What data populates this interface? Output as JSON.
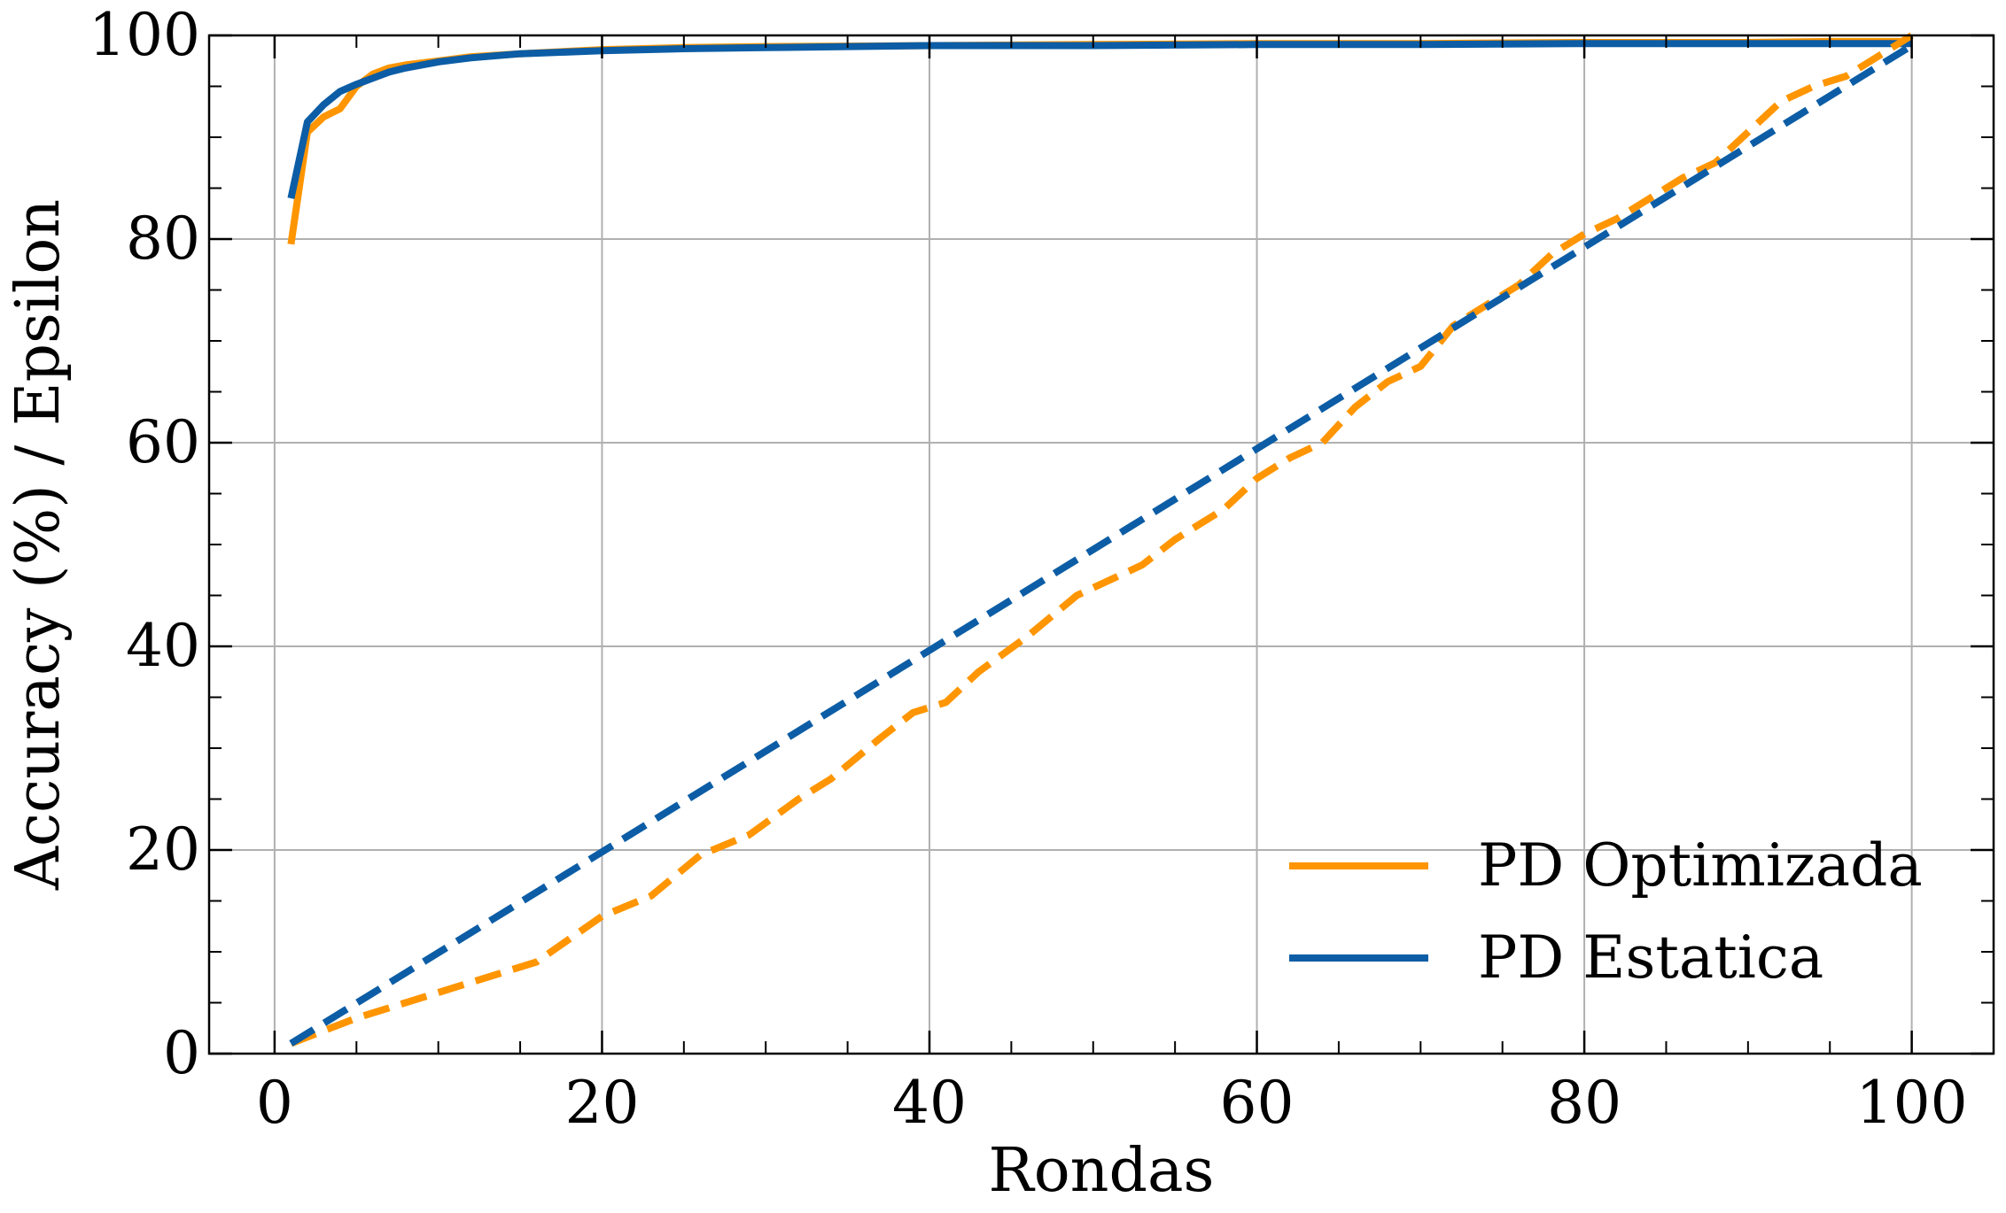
{
  "chart_data": {
    "type": "line",
    "title": "",
    "xlabel": "Rondas",
    "ylabel": "Accuracy (%) / Epsilon",
    "xlim": [
      -4,
      105
    ],
    "ylim": [
      0,
      100
    ],
    "xticks": [
      0,
      20,
      40,
      60,
      80,
      100
    ],
    "yticks": [
      0,
      20,
      40,
      60,
      80,
      100
    ],
    "xtick_labels": [
      "0",
      "20",
      "40",
      "60",
      "80",
      "100"
    ],
    "ytick_labels": [
      "0",
      "20",
      "40",
      "60",
      "80",
      "100"
    ],
    "grid": true,
    "legend_position": "bottom-right",
    "legend": [
      "PD Optimizada",
      "PD Estatica"
    ],
    "colors": {
      "PD Optimizada": "#ff9500",
      "PD Estatica": "#0c5da5"
    },
    "series": [
      {
        "name": "PD Optimizada",
        "metric": "accuracy",
        "style": "solid",
        "color": "#ff9500",
        "x": [
          1,
          2,
          3,
          4,
          5,
          6,
          7,
          8,
          10,
          12,
          15,
          20,
          25,
          30,
          40,
          50,
          60,
          70,
          80,
          90,
          95,
          100
        ],
        "y": [
          79.5,
          90.5,
          92.0,
          92.8,
          95.0,
          96.2,
          96.8,
          97.1,
          97.5,
          97.9,
          98.2,
          98.6,
          98.8,
          98.9,
          99.0,
          99.1,
          99.2,
          99.2,
          99.3,
          99.3,
          99.4,
          99.4
        ]
      },
      {
        "name": "PD Estatica",
        "metric": "accuracy",
        "style": "solid",
        "color": "#0c5da5",
        "x": [
          1,
          2,
          3,
          4,
          5,
          6,
          7,
          8,
          10,
          12,
          15,
          20,
          25,
          30,
          40,
          50,
          60,
          70,
          80,
          90,
          95,
          100
        ],
        "y": [
          84.0,
          91.5,
          93.2,
          94.5,
          95.2,
          95.8,
          96.4,
          96.8,
          97.4,
          97.8,
          98.2,
          98.5,
          98.7,
          98.8,
          99.0,
          99.0,
          99.1,
          99.1,
          99.2,
          99.2,
          99.2,
          99.2
        ]
      },
      {
        "name": "PD Optimizada",
        "metric": "epsilon",
        "style": "dashed",
        "color": "#ff9500",
        "x": [
          1,
          5,
          10,
          16,
          20,
          23,
          26,
          29,
          32,
          34,
          37,
          39,
          41,
          43,
          46,
          49,
          51,
          53,
          55,
          58,
          60,
          62,
          64,
          66,
          68,
          70,
          72,
          74,
          76,
          78,
          80,
          82,
          84,
          86,
          88,
          90,
          92,
          94,
          96,
          98,
          100
        ],
        "y": [
          1.0,
          3.5,
          6.0,
          9.0,
          13.5,
          15.5,
          19.5,
          21.5,
          25.0,
          27.0,
          31.0,
          33.5,
          34.5,
          37.5,
          41.0,
          45.0,
          46.5,
          48.0,
          50.5,
          53.5,
          56.5,
          58.5,
          60.0,
          63.5,
          66.0,
          67.5,
          71.5,
          73.5,
          75.5,
          78.5,
          80.5,
          82.0,
          84.0,
          86.0,
          87.5,
          90.5,
          93.5,
          95.0,
          96.0,
          98.0,
          100.0
        ]
      },
      {
        "name": "PD Estatica",
        "metric": "epsilon",
        "style": "dashed",
        "color": "#0c5da5",
        "x": [
          1,
          100
        ],
        "y": [
          1.0,
          99.0
        ]
      }
    ]
  }
}
